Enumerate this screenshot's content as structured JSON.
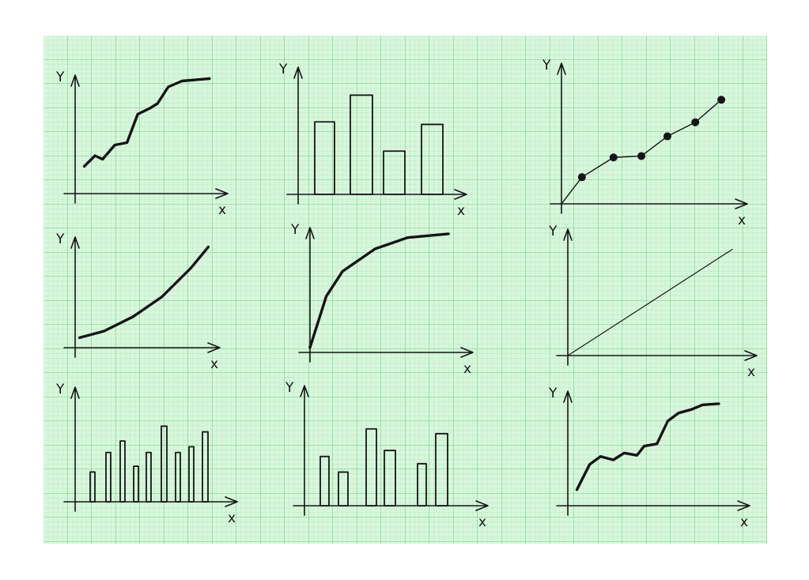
{
  "colors": {
    "paper": "#d9f6dd",
    "grid_minor": "#9fe3a9",
    "grid_major": "#5fcf72",
    "ink": "#151515"
  },
  "chart_data": [
    {
      "type": "line",
      "axis_labels": {
        "x": "X",
        "y": "Y"
      },
      "xlim": [
        0,
        10
      ],
      "ylim": [
        0,
        10
      ],
      "x": [
        0.6,
        1.3,
        1.8,
        2.6,
        3.4,
        4.1,
        4.9,
        5.4,
        6.1,
        7.0,
        8.8
      ],
      "y": [
        2.3,
        3.2,
        2.9,
        4.1,
        4.3,
        6.7,
        7.2,
        7.6,
        9.0,
        9.5,
        9.7
      ]
    },
    {
      "type": "bar",
      "axis_labels": {
        "x": "X",
        "y": "Y"
      },
      "ylim": [
        0,
        10
      ],
      "style": "hatched",
      "values": [
        5.7,
        7.8,
        3.4,
        5.5
      ]
    },
    {
      "type": "scatter",
      "axis_labels": {
        "x": "X",
        "y": "Y"
      },
      "xlim": [
        0,
        10
      ],
      "ylim": [
        0,
        10
      ],
      "connected": true,
      "x": [
        1.1,
        2.8,
        4.3,
        5.7,
        7.2,
        8.6
      ],
      "y": [
        1.9,
        3.3,
        3.4,
        4.8,
        5.8,
        7.4
      ]
    },
    {
      "type": "line",
      "axis_labels": {
        "x": "X",
        "y": "Y"
      },
      "xlim": [
        0,
        10
      ],
      "ylim": [
        0,
        10
      ],
      "shape": "exponential",
      "x": [
        0.3,
        2,
        4,
        6,
        8,
        9.2
      ],
      "y": [
        0.9,
        1.5,
        2.8,
        4.6,
        7.2,
        9.1
      ]
    },
    {
      "type": "line",
      "axis_labels": {
        "x": "X",
        "y": "Y"
      },
      "xlim": [
        0,
        10
      ],
      "ylim": [
        0,
        10
      ],
      "shape": "saturating",
      "x": [
        0,
        1,
        2,
        4,
        6,
        8.5
      ],
      "y": [
        0.4,
        4.5,
        6.5,
        8.3,
        9.2,
        9.5
      ]
    },
    {
      "type": "line",
      "axis_labels": {
        "x": "X",
        "y": "Y"
      },
      "xlim": [
        0,
        10
      ],
      "ylim": [
        0,
        10
      ],
      "shape": "linear",
      "x": [
        0,
        8.7
      ],
      "y": [
        0,
        8.4
      ]
    },
    {
      "type": "bar",
      "axis_labels": {
        "x": "X",
        "y": "Y"
      },
      "ylim": [
        0,
        10
      ],
      "style": "thin-filled",
      "values": [
        2.6,
        4.3,
        5.3,
        3.1,
        4.3,
        6.6,
        4.3,
        4.8,
        6.1
      ]
    },
    {
      "type": "bar",
      "axis_labels": {
        "x": "X",
        "y": "Y"
      },
      "ylim": [
        0,
        10
      ],
      "style": "alternating-filled-outline",
      "values": [
        4.1,
        2.8,
        6.4,
        4.6,
        3.5,
        6.0
      ],
      "filled": [
        true,
        false,
        true,
        false,
        true,
        false
      ]
    },
    {
      "type": "line",
      "axis_labels": {
        "x": "X",
        "y": "Y"
      },
      "xlim": [
        0,
        10
      ],
      "ylim": [
        0,
        10
      ],
      "x": [
        0.5,
        1.2,
        1.8,
        2.5,
        3.1,
        3.8,
        4.2,
        4.9,
        5.5,
        6.1,
        6.8,
        7.4,
        8.3
      ],
      "y": [
        1.4,
        3.6,
        4.3,
        4.0,
        4.6,
        4.4,
        5.2,
        5.4,
        7.4,
        8.1,
        8.4,
        8.8,
        8.9
      ]
    }
  ]
}
